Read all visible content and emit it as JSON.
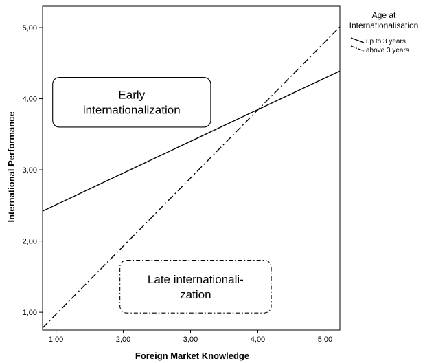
{
  "chart_data": {
    "type": "line",
    "xlabel": "Foreign Market Knowledge",
    "ylabel": "International Performance",
    "xlim": [
      0.8,
      5.22
    ],
    "ylim": [
      0.75,
      5.3
    ],
    "xticks": [
      1.0,
      2.0,
      3.0,
      4.0,
      5.0
    ],
    "xtick_labels": [
      "1,00",
      "2,00",
      "3,00",
      "4,00",
      "5,00"
    ],
    "yticks": [
      1.0,
      2.0,
      3.0,
      4.0,
      5.0
    ],
    "ytick_labels": [
      "1,00",
      "2,00",
      "3,00",
      "4,00",
      "5,00"
    ],
    "grid": false,
    "legend": {
      "title_lines": [
        "Age at",
        "Internationalisation"
      ],
      "placement": "outside-top-right"
    },
    "series": [
      {
        "name": "up to 3 years",
        "style": "solid",
        "color": "#000000",
        "x": [
          0.8,
          5.22
        ],
        "y": [
          2.42,
          4.39
        ]
      },
      {
        "name": "above 3 years",
        "style": "dash-dot",
        "color": "#000000",
        "x": [
          0.8,
          5.22
        ],
        "y": [
          0.78,
          5.01
        ]
      }
    ],
    "annotations": [
      {
        "lines": [
          "Early",
          "internationalization"
        ],
        "border": "solid",
        "x": [
          0.95,
          3.3
        ],
        "y": [
          3.6,
          4.3
        ]
      },
      {
        "lines": [
          "Late internationali-",
          "zation"
        ],
        "border": "dash-dot",
        "x": [
          1.95,
          4.2
        ],
        "y": [
          0.99,
          1.73
        ]
      }
    ]
  }
}
